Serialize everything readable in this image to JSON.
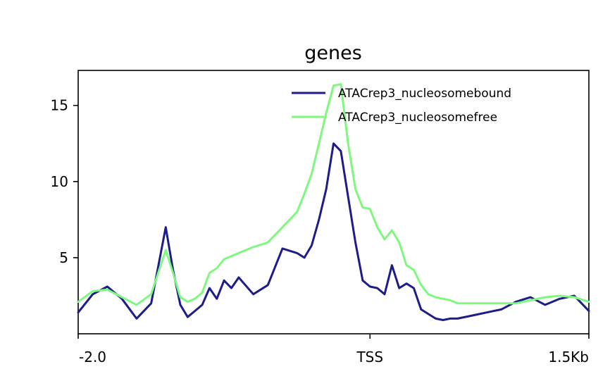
{
  "chart_data": {
    "type": "line",
    "title": "genes",
    "xlabel": "",
    "ylabel": "",
    "x_tick_labels": [
      "-2.0",
      "TSS",
      "1.5Kb"
    ],
    "x_tick_positions_kb": [
      -2.0,
      0.0,
      1.5
    ],
    "xlim": [
      -2.0,
      1.5
    ],
    "y_ticks": [
      5,
      10,
      15
    ],
    "y_tick_labels": [
      "5",
      "10",
      "15"
    ],
    "ylim": [
      0,
      17.3
    ],
    "legend": "top-right",
    "grid": false,
    "x": [
      -2.0,
      -1.9,
      -1.8,
      -1.7,
      -1.6,
      -1.5,
      -1.4,
      -1.35,
      -1.3,
      -1.25,
      -1.2,
      -1.15,
      -1.1,
      -1.05,
      -1.0,
      -0.95,
      -0.9,
      -0.8,
      -0.7,
      -0.6,
      -0.5,
      -0.45,
      -0.4,
      -0.35,
      -0.3,
      -0.25,
      -0.2,
      -0.15,
      -0.1,
      -0.05,
      0.0,
      0.05,
      0.1,
      0.15,
      0.2,
      0.25,
      0.3,
      0.35,
      0.4,
      0.45,
      0.5,
      0.55,
      0.6,
      0.7,
      0.8,
      0.9,
      1.0,
      1.1,
      1.2,
      1.3,
      1.4,
      1.5
    ],
    "series": [
      {
        "name": "ATACrep3_nucleosomebound",
        "color": "#1c1c8a",
        "values": [
          1.4,
          2.6,
          3.1,
          2.3,
          1.0,
          2.0,
          7.0,
          4.2,
          1.9,
          1.1,
          1.5,
          1.9,
          3.0,
          2.3,
          3.5,
          3.0,
          3.7,
          2.6,
          3.2,
          5.6,
          5.3,
          5.0,
          5.8,
          7.5,
          9.5,
          12.5,
          12.0,
          9.0,
          6.0,
          3.5,
          3.1,
          3.0,
          2.6,
          4.5,
          3.0,
          3.3,
          3.0,
          1.6,
          1.3,
          1.0,
          0.9,
          1.0,
          1.0,
          1.2,
          1.4,
          1.6,
          2.1,
          2.4,
          1.9,
          2.3,
          2.5,
          1.5
        ]
      },
      {
        "name": "ATACrep3_nucleosomefree",
        "color": "#7ef87e",
        "values": [
          2.1,
          2.8,
          2.9,
          2.4,
          1.9,
          2.6,
          5.5,
          4.0,
          2.4,
          2.1,
          2.3,
          2.7,
          4.0,
          4.3,
          4.9,
          5.1,
          5.3,
          5.7,
          6.0,
          7.0,
          8.0,
          9.2,
          10.5,
          12.5,
          14.5,
          16.3,
          16.4,
          12.5,
          9.5,
          8.3,
          8.2,
          7.0,
          6.2,
          6.8,
          6.0,
          4.5,
          4.2,
          3.2,
          2.6,
          2.4,
          2.3,
          2.2,
          2.0,
          2.0,
          2.0,
          2.0,
          2.0,
          2.2,
          2.4,
          2.5,
          2.4,
          2.1
        ]
      }
    ]
  }
}
